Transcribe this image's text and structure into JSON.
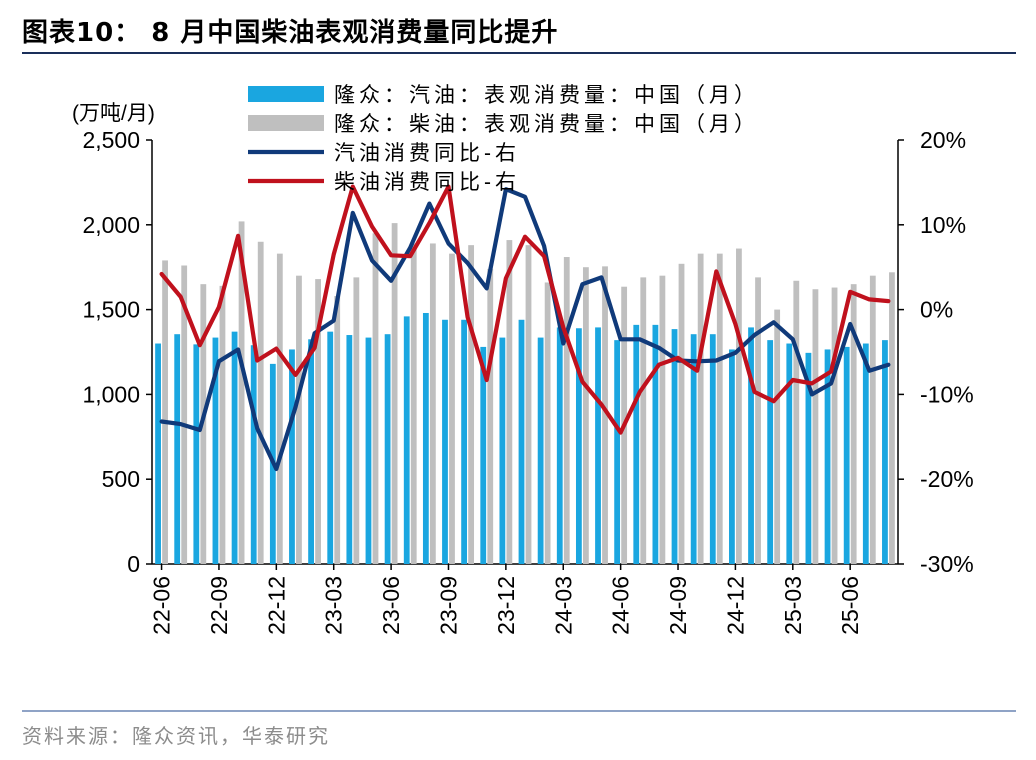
{
  "title": "图表10： 8 月中国柴油表观消费量同比提升",
  "source": "资料来源：隆众资讯，华泰研究",
  "chart_data": {
    "type": "bar+line",
    "left_unit": "(万吨/月)",
    "left_ylim": [
      0,
      2500
    ],
    "left_ticks": [
      "0",
      "500",
      "1,000",
      "1,500",
      "2,000",
      "2,500"
    ],
    "right_ylim": [
      -0.3,
      0.2
    ],
    "right_ticks": [
      "-30%",
      "-20%",
      "-10%",
      "0%",
      "10%",
      "20%"
    ],
    "x_tick_labels": [
      "22-06",
      "22-09",
      "22-12",
      "23-03",
      "23-06",
      "23-09",
      "23-12",
      "24-03",
      "24-06",
      "24-09",
      "24-12",
      "25-03",
      "25-06"
    ],
    "x": [
      "22-06",
      "22-07",
      "22-08",
      "22-09",
      "22-10",
      "22-11",
      "22-12",
      "23-01",
      "23-02",
      "23-03",
      "23-04",
      "23-05",
      "23-06",
      "23-07",
      "23-08",
      "23-09",
      "23-10",
      "23-11",
      "23-12",
      "24-01",
      "24-02",
      "24-03",
      "24-04",
      "24-05",
      "24-06",
      "24-07",
      "24-08",
      "24-09",
      "24-10",
      "24-11",
      "24-12",
      "25-01",
      "25-02",
      "25-03",
      "25-04",
      "25-05",
      "25-06",
      "25-07",
      "25-08"
    ],
    "series": [
      {
        "name": "隆众：汽油：表观消费量：中国（月）",
        "type": "bar",
        "axis": "left",
        "color": "#1aa6e0",
        "values": [
          1300,
          1355,
          1295,
          1335,
          1370,
          1290,
          1180,
          1265,
          1325,
          1370,
          1350,
          1335,
          1355,
          1460,
          1480,
          1440,
          1440,
          1280,
          1335,
          1440,
          1335,
          1395,
          1390,
          1395,
          1320,
          1410,
          1410,
          1385,
          1355,
          1355,
          1265,
          1395,
          1320,
          1300,
          1245,
          1265,
          1280,
          1300,
          1320
        ]
      },
      {
        "name": "隆众：柴油：表观消费量：中国（月）",
        "type": "bar",
        "axis": "left",
        "color": "#bfbfbf",
        "values": [
          1790,
          1760,
          1650,
          1640,
          2020,
          1900,
          1830,
          1700,
          1680,
          1580,
          1690,
          1950,
          2010,
          1890,
          1890,
          1830,
          1880,
          1740,
          1910,
          1880,
          1660,
          1810,
          1750,
          1755,
          1635,
          1690,
          1700,
          1770,
          1830,
          1830,
          1860,
          1690,
          1500,
          1670,
          1620,
          1630,
          1650,
          1700,
          1720
        ]
      },
      {
        "name": "汽油消费同比-右",
        "type": "line",
        "axis": "right",
        "color": "#103a7a",
        "values": [
          -0.132,
          -0.135,
          -0.142,
          -0.061,
          -0.047,
          -0.14,
          -0.188,
          -0.115,
          -0.028,
          -0.013,
          0.114,
          0.058,
          0.034,
          0.073,
          0.125,
          0.078,
          0.055,
          0.025,
          0.142,
          0.133,
          0.075,
          -0.04,
          0.03,
          0.038,
          -0.035,
          -0.035,
          -0.045,
          -0.06,
          -0.061,
          -0.06,
          -0.051,
          -0.03,
          -0.015,
          -0.035,
          -0.1,
          -0.087,
          -0.017,
          -0.072,
          -0.065
        ]
      },
      {
        "name": "柴油消费同比-右",
        "type": "line",
        "axis": "right",
        "color": "#c0111d",
        "values": [
          0.042,
          0.015,
          -0.042,
          0.003,
          0.087,
          -0.06,
          -0.046,
          -0.077,
          -0.045,
          0.065,
          0.145,
          0.098,
          0.064,
          0.063,
          0.102,
          0.145,
          -0.009,
          -0.083,
          0.037,
          0.086,
          0.063,
          -0.021,
          -0.085,
          -0.112,
          -0.145,
          -0.097,
          -0.065,
          -0.057,
          -0.072,
          0.045,
          -0.017,
          -0.097,
          -0.108,
          -0.083,
          -0.087,
          -0.073,
          0.021,
          0.012,
          0.01
        ]
      }
    ],
    "legend_position": "top"
  }
}
